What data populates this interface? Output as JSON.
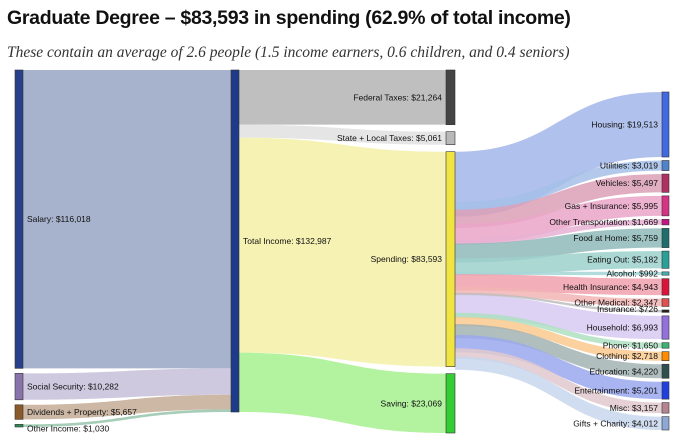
{
  "header": {
    "title": "Graduate Degree – $83,593 in spending (62.9% of total income)",
    "subtitle": "These contain an average of 2.6 people (1.5 income earners, 0.6 children, and 0.4 seniors)"
  },
  "chart_data": {
    "type": "sankey",
    "title": "Graduate Degree – $83,593 in spending (62.9% of total income)",
    "subtitle": "These contain an average of 2.6 people (1.5 income earners, 0.6 children, and 0.4 seniors)",
    "nodes": [
      {
        "id": "salary",
        "label": "Salary: $116,018",
        "value": 116018,
        "column": 0,
        "color": "#27408b",
        "flow_color": "#98a4c4"
      },
      {
        "id": "social",
        "label": "Social Security: $10,282",
        "value": 10282,
        "column": 0,
        "color": "#8874ab",
        "flow_color": "#c7bfd9"
      },
      {
        "id": "dividends",
        "label": "Dividends + Property: $5,657",
        "value": 5657,
        "column": 0,
        "color": "#8b5a2b",
        "flow_color": "#c4ab95"
      },
      {
        "id": "other_income",
        "label": "Other Income: $1,030",
        "value": 1030,
        "column": 0,
        "color": "#2e8b57",
        "flow_color": "#95c4aa"
      },
      {
        "id": "total",
        "label": "Total Income: $132,987",
        "value": 132987,
        "column": 1,
        "color": "#1e3a8a"
      },
      {
        "id": "federal",
        "label": "Federal Taxes: $21,264",
        "value": 21264,
        "column": 2,
        "color": "#444444",
        "flow_color": "#b4b4b4"
      },
      {
        "id": "state",
        "label": "State + Local Taxes: $5,061",
        "value": 5061,
        "column": 2,
        "color": "#b8b8b8",
        "flow_color": "#e0e0e0"
      },
      {
        "id": "spending",
        "label": "Spending: $83,593",
        "value": 83593,
        "column": 2,
        "color": "#f0e442",
        "flow_color": "#f5f0a6"
      },
      {
        "id": "saving",
        "label": "Saving: $23,069",
        "value": 23069,
        "column": 2,
        "color": "#32cd32",
        "flow_color": "#a6f08e"
      },
      {
        "id": "housing",
        "label": "Housing: $19,513",
        "value": 19513,
        "column": 3,
        "color": "#4169e1",
        "flow_color": "#a3b6ea"
      },
      {
        "id": "utilities",
        "label": "Utilities: $3,019",
        "value": 3019,
        "column": 3,
        "color": "#4f83cc",
        "flow_color": "#a6c0e8"
      },
      {
        "id": "vehicles",
        "label": "Vehicles: $5,497",
        "value": 5497,
        "column": 3,
        "color": "#b03060",
        "flow_color": "#dca0b6"
      },
      {
        "id": "gas",
        "label": "Gas + Insurance: $5,995",
        "value": 5995,
        "column": 3,
        "color": "#d63384",
        "flow_color": "#eaa4c8"
      },
      {
        "id": "other_transport",
        "label": "Other Transportation: $1,669",
        "value": 1669,
        "column": 3,
        "color": "#c71585",
        "flow_color": "#e8b0d2"
      },
      {
        "id": "food_home",
        "label": "Food at Home: $5,759",
        "value": 5759,
        "column": 3,
        "color": "#1f6e6e",
        "flow_color": "#8fbaba"
      },
      {
        "id": "eating_out",
        "label": "Eating Out: $5,182",
        "value": 5182,
        "column": 3,
        "color": "#2aa198",
        "flow_color": "#9dd1cc"
      },
      {
        "id": "alcohol",
        "label": "Alcohol: $992",
        "value": 992,
        "column": 3,
        "color": "#48b0b0",
        "flow_color": "#a4d6d6"
      },
      {
        "id": "health_ins",
        "label": "Health Insurance: $4,943",
        "value": 4943,
        "column": 3,
        "color": "#dc143c",
        "flow_color": "#f0a1ad"
      },
      {
        "id": "other_medical",
        "label": "Other Medical: $2,347",
        "value": 2347,
        "column": 3,
        "color": "#e05050",
        "flow_color": "#f2b4b4"
      },
      {
        "id": "insurance",
        "label": "Insurance: $726",
        "value": 726,
        "column": 3,
        "color": "#222222",
        "flow_color": "#bdbdbd"
      },
      {
        "id": "household",
        "label": "Household: $6,993",
        "value": 6993,
        "column": 3,
        "color": "#9370db",
        "flow_color": "#d7c9f2"
      },
      {
        "id": "phone",
        "label": "Phone: $1,650",
        "value": 1650,
        "column": 3,
        "color": "#3cb371",
        "flow_color": "#aee0c2"
      },
      {
        "id": "clothing",
        "label": "Clothing: $2,718",
        "value": 2718,
        "column": 3,
        "color": "#ff8c00",
        "flow_color": "#fbc98f"
      },
      {
        "id": "education",
        "label": "Education: $4,220",
        "value": 4220,
        "column": 3,
        "color": "#2f4f4f",
        "flow_color": "#a3b3b3"
      },
      {
        "id": "entertainment",
        "label": "Entertainment: $5,201",
        "value": 5201,
        "column": 3,
        "color": "#1f3fdf",
        "flow_color": "#9aa8ee"
      },
      {
        "id": "misc",
        "label": "Misc: $3,157",
        "value": 3157,
        "column": 3,
        "color": "#b5858f",
        "flow_color": "#e0c9ce"
      },
      {
        "id": "gifts",
        "label": "Gifts + Charity: $4,012",
        "value": 4012,
        "column": 3,
        "color": "#8ea8d4",
        "flow_color": "#c8d6ec"
      }
    ],
    "links": [
      {
        "source": "salary",
        "target": "total",
        "value": 116018
      },
      {
        "source": "social",
        "target": "total",
        "value": 10282
      },
      {
        "source": "dividends",
        "target": "total",
        "value": 5657
      },
      {
        "source": "other_income",
        "target": "total",
        "value": 1030
      },
      {
        "source": "total",
        "target": "federal",
        "value": 21264
      },
      {
        "source": "total",
        "target": "state",
        "value": 5061
      },
      {
        "source": "total",
        "target": "spending",
        "value": 83593
      },
      {
        "source": "total",
        "target": "saving",
        "value": 23069
      },
      {
        "source": "spending",
        "target": "housing",
        "value": 19513
      },
      {
        "source": "spending",
        "target": "utilities",
        "value": 3019
      },
      {
        "source": "spending",
        "target": "vehicles",
        "value": 5497
      },
      {
        "source": "spending",
        "target": "gas",
        "value": 5995
      },
      {
        "source": "spending",
        "target": "other_transport",
        "value": 1669
      },
      {
        "source": "spending",
        "target": "food_home",
        "value": 5759
      },
      {
        "source": "spending",
        "target": "eating_out",
        "value": 5182
      },
      {
        "source": "spending",
        "target": "alcohol",
        "value": 992
      },
      {
        "source": "spending",
        "target": "health_ins",
        "value": 4943
      },
      {
        "source": "spending",
        "target": "other_medical",
        "value": 2347
      },
      {
        "source": "spending",
        "target": "insurance",
        "value": 726
      },
      {
        "source": "spending",
        "target": "household",
        "value": 6993
      },
      {
        "source": "spending",
        "target": "phone",
        "value": 1650
      },
      {
        "source": "spending",
        "target": "clothing",
        "value": 2718
      },
      {
        "source": "spending",
        "target": "education",
        "value": 4220
      },
      {
        "source": "spending",
        "target": "entertainment",
        "value": 5201
      },
      {
        "source": "spending",
        "target": "misc",
        "value": 3157
      },
      {
        "source": "spending",
        "target": "gifts",
        "value": 4012
      }
    ]
  }
}
